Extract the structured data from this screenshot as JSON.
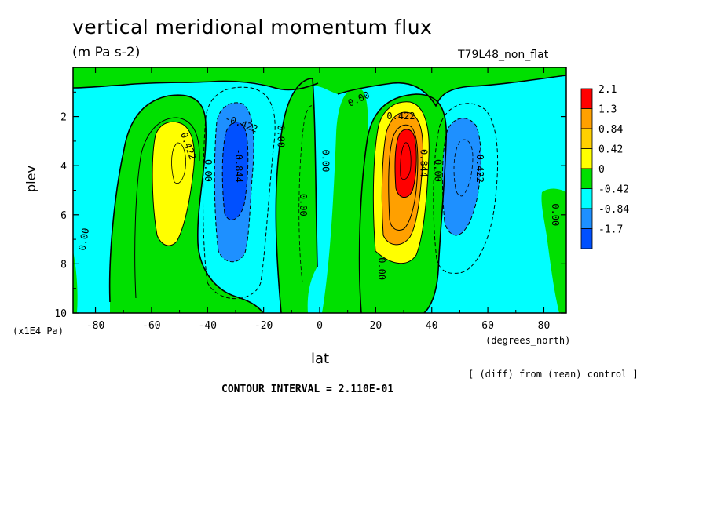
{
  "chart_data": {
    "type": "heatmap",
    "title": "vertical meridional momentum flux",
    "units": "(m Pa s-2)",
    "run_label": "T79L48_non_flat",
    "xlabel": "lat",
    "x_units": "(degrees_north)",
    "ylabel": "plev",
    "y_units": "(x1E4 Pa)",
    "x_range": [
      -88,
      88
    ],
    "y_range": [
      0,
      10
    ],
    "x_ticks": [
      "-80",
      "-60",
      "-40",
      "-20",
      "0",
      "20",
      "40",
      "60",
      "80"
    ],
    "y_ticks": [
      "2",
      "4",
      "6",
      "8",
      "10"
    ],
    "legend_levels": [
      "2.1",
      "1.3",
      "0.84",
      "0.42",
      "0",
      "-0.42",
      "-0.84",
      "-1.7"
    ],
    "legend_colors": [
      "#ff0000",
      "#ffa000",
      "#ffd000",
      "#ffff00",
      "#00e000",
      "#00ffff",
      "#1e90ff",
      "#0050ff"
    ],
    "contour_interval_text": "CONTOUR INTERVAL = 2.110E-01",
    "diff_note": "[ (diff) from (mean) control ]",
    "contour_labels": [
      {
        "text": "0.00",
        "lat": 2,
        "plev": 3.8,
        "rot": 90
      },
      {
        "text": "0.00",
        "lat": -6,
        "plev": 5.6,
        "rot": 90
      },
      {
        "text": "0.00",
        "lat": -84,
        "plev": 7.0,
        "rot": -80
      },
      {
        "text": "0.00",
        "lat": -40,
        "plev": 4.2,
        "rot": 90
      },
      {
        "text": "0.00",
        "lat": -14,
        "plev": 2.8,
        "rot": 90
      },
      {
        "text": "0.00",
        "lat": 14,
        "plev": 1.3,
        "rot": -25
      },
      {
        "text": "0.00",
        "lat": 42,
        "plev": 4.2,
        "rot": 90
      },
      {
        "text": "0.00",
        "lat": 22,
        "plev": 8.2,
        "rot": 90
      },
      {
        "text": "0.00",
        "lat": 84,
        "plev": 6.0,
        "rot": 90
      },
      {
        "text": "0.422",
        "lat": -47,
        "plev": 3.2,
        "rot": 70
      },
      {
        "text": "-0.422",
        "lat": -28,
        "plev": 2.3,
        "rot": 20
      },
      {
        "text": "-0.844",
        "lat": -29,
        "plev": 4.0,
        "rot": 90
      },
      {
        "text": "0.422",
        "lat": 29,
        "plev": 2.0,
        "rot": 0
      },
      {
        "text": "0.844",
        "lat": 37,
        "plev": 3.9,
        "rot": 90
      },
      {
        "text": "-0.422",
        "lat": 57,
        "plev": 4.0,
        "rot": 90
      }
    ]
  }
}
